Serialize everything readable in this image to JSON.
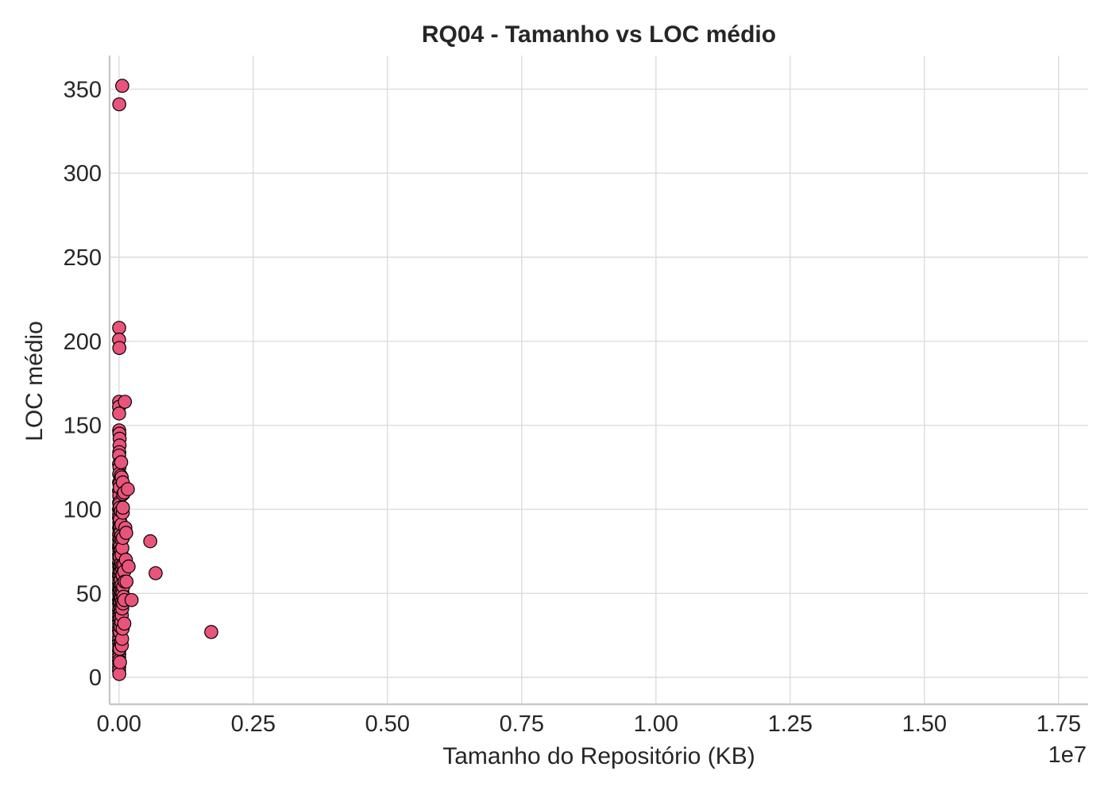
{
  "chart_data": {
    "type": "scatter",
    "title": "RQ04 - Tamanho vs LOC médio",
    "xlabel": "Tamanho do Repositório (KB)",
    "ylabel": "LOC médio",
    "x_offset_label": "1e7",
    "x_scale": 10000000,
    "xlim": [
      -0.0175,
      1.805
    ],
    "ylim": [
      -16,
      370
    ],
    "xticks": [
      0.0,
      0.25,
      0.5,
      0.75,
      1.0,
      1.25,
      1.5,
      1.75
    ],
    "xtick_labels": [
      "0.00",
      "0.25",
      "0.50",
      "0.75",
      "1.00",
      "1.25",
      "1.50",
      "1.75"
    ],
    "yticks": [
      0,
      50,
      100,
      150,
      200,
      250,
      300,
      350
    ],
    "ytick_labels": [
      "0",
      "50",
      "100",
      "150",
      "200",
      "250",
      "300",
      "350"
    ],
    "grid": true,
    "marker_color": "#e8547a",
    "marker_edge_color": "#000000",
    "points": [
      [
        0.006,
        352
      ],
      [
        0.0005,
        341
      ],
      [
        0.0003,
        208
      ],
      [
        0.0001,
        201
      ],
      [
        0.0006,
        196
      ],
      [
        0.0002,
        164
      ],
      [
        0.0001,
        161
      ],
      [
        0.0002,
        157
      ],
      [
        0.0003,
        147
      ],
      [
        0.0007,
        145
      ],
      [
        0.0012,
        142
      ],
      [
        0.001,
        138
      ],
      [
        0.0005,
        134
      ],
      [
        0.0002,
        132
      ],
      [
        0.0001,
        127
      ],
      [
        0.0008,
        125
      ],
      [
        0.0003,
        121
      ],
      [
        0.0002,
        116
      ],
      [
        0.0009,
        115
      ],
      [
        0.0001,
        111
      ],
      [
        0.0004,
        108
      ],
      [
        0.0002,
        104
      ],
      [
        0.0007,
        103
      ],
      [
        0.0001,
        100
      ],
      [
        0.0003,
        97
      ],
      [
        0.0001,
        95
      ],
      [
        0.0005,
        92
      ],
      [
        0.0002,
        89
      ],
      [
        0.0009,
        87
      ],
      [
        0.0001,
        85
      ],
      [
        0.0003,
        82
      ],
      [
        0.0002,
        79
      ],
      [
        0.0001,
        77
      ],
      [
        0.0006,
        75
      ],
      [
        0.0002,
        73
      ],
      [
        0.0004,
        71
      ],
      [
        0.0001,
        68
      ],
      [
        0.0003,
        66
      ],
      [
        0.0008,
        64
      ],
      [
        0.0002,
        62
      ],
      [
        0.0001,
        60
      ],
      [
        0.0005,
        58
      ],
      [
        0.0002,
        56
      ],
      [
        0.0004,
        54
      ],
      [
        0.0001,
        52
      ],
      [
        0.0003,
        50
      ],
      [
        0.0007,
        48
      ],
      [
        0.0001,
        46
      ],
      [
        0.0002,
        44
      ],
      [
        0.0006,
        42
      ],
      [
        0.0001,
        40
      ],
      [
        0.0003,
        38
      ],
      [
        0.0002,
        36
      ],
      [
        0.0001,
        34
      ],
      [
        0.0004,
        32
      ],
      [
        0.0002,
        30
      ],
      [
        0.0001,
        28
      ],
      [
        0.0005,
        26
      ],
      [
        0.0003,
        24
      ],
      [
        0.0001,
        22
      ],
      [
        0.0002,
        20
      ],
      [
        0.0004,
        18
      ],
      [
        0.0001,
        16
      ],
      [
        0.0003,
        14
      ],
      [
        0.0002,
        12
      ],
      [
        0.0001,
        10
      ],
      [
        0.0003,
        8
      ],
      [
        0.0002,
        6
      ],
      [
        0.0001,
        4
      ],
      [
        0.0005,
        2
      ],
      [
        0.0013,
        113
      ],
      [
        0.0015,
        101
      ],
      [
        0.0016,
        94
      ],
      [
        0.0018,
        83
      ],
      [
        0.0014,
        72
      ],
      [
        0.0017,
        61
      ],
      [
        0.0012,
        53
      ],
      [
        0.0019,
        47
      ],
      [
        0.0015,
        37
      ],
      [
        0.0016,
        27
      ],
      [
        0.0013,
        17
      ],
      [
        0.0018,
        9
      ],
      [
        0.0021,
        90
      ],
      [
        0.0022,
        78
      ],
      [
        0.0024,
        66
      ],
      [
        0.0025,
        55
      ],
      [
        0.0023,
        45
      ],
      [
        0.0026,
        35
      ],
      [
        0.0028,
        86
      ],
      [
        0.003,
        63
      ],
      [
        0.0031,
        52
      ],
      [
        0.0032,
        41
      ],
      [
        0.0029,
        30
      ],
      [
        0.0034,
        120
      ],
      [
        0.0035,
        99
      ],
      [
        0.0036,
        76
      ],
      [
        0.0033,
        58
      ],
      [
        0.0037,
        39
      ],
      [
        0.0038,
        21
      ],
      [
        0.004,
        128
      ],
      [
        0.0041,
        84
      ],
      [
        0.0042,
        68
      ],
      [
        0.0043,
        47
      ],
      [
        0.0044,
        33
      ],
      [
        0.0046,
        91
      ],
      [
        0.0048,
        73
      ],
      [
        0.0049,
        55
      ],
      [
        0.005,
        119
      ],
      [
        0.0051,
        82
      ],
      [
        0.0052,
        37
      ],
      [
        0.0053,
        19
      ],
      [
        0.0055,
        65
      ],
      [
        0.0056,
        45
      ],
      [
        0.0057,
        23
      ],
      [
        0.0058,
        61
      ],
      [
        0.0059,
        52
      ],
      [
        0.006,
        41
      ],
      [
        0.0062,
        77
      ],
      [
        0.0064,
        67
      ],
      [
        0.0065,
        61
      ],
      [
        0.0066,
        50
      ],
      [
        0.0068,
        29
      ],
      [
        0.007,
        98
      ],
      [
        0.0071,
        116
      ],
      [
        0.0072,
        83
      ],
      [
        0.0073,
        101
      ],
      [
        0.0075,
        44
      ],
      [
        0.0077,
        109
      ],
      [
        0.0078,
        54
      ],
      [
        0.0085,
        48
      ],
      [
        0.0093,
        67
      ],
      [
        0.0096,
        110
      ],
      [
        0.0097,
        63
      ],
      [
        0.0099,
        32
      ],
      [
        0.01,
        46
      ],
      [
        0.0105,
        57
      ],
      [
        0.011,
        164
      ],
      [
        0.0118,
        89
      ],
      [
        0.0128,
        70
      ],
      [
        0.0134,
        86
      ],
      [
        0.0139,
        57
      ],
      [
        0.0164,
        112
      ],
      [
        0.0179,
        66
      ],
      [
        0.0234,
        46
      ],
      [
        0.0582,
        81
      ],
      [
        0.0682,
        62
      ],
      [
        0.1718,
        27
      ]
    ]
  }
}
